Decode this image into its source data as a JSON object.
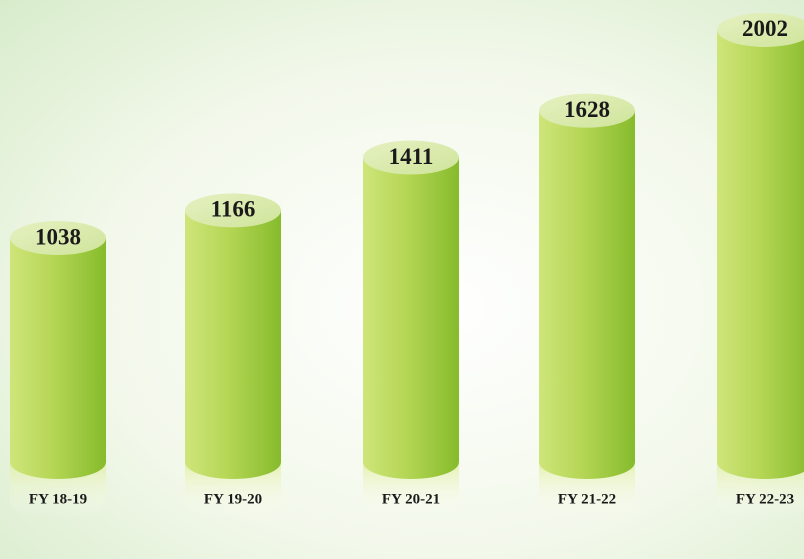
{
  "chart_data": {
    "type": "bar",
    "categories": [
      "FY 18-19",
      "FY 19-20",
      "FY 20-21",
      "FY 21-22",
      "FY 22-23"
    ],
    "values": [
      1038,
      1166,
      1411,
      1628,
      2002
    ],
    "color": "#a9d14a"
  }
}
